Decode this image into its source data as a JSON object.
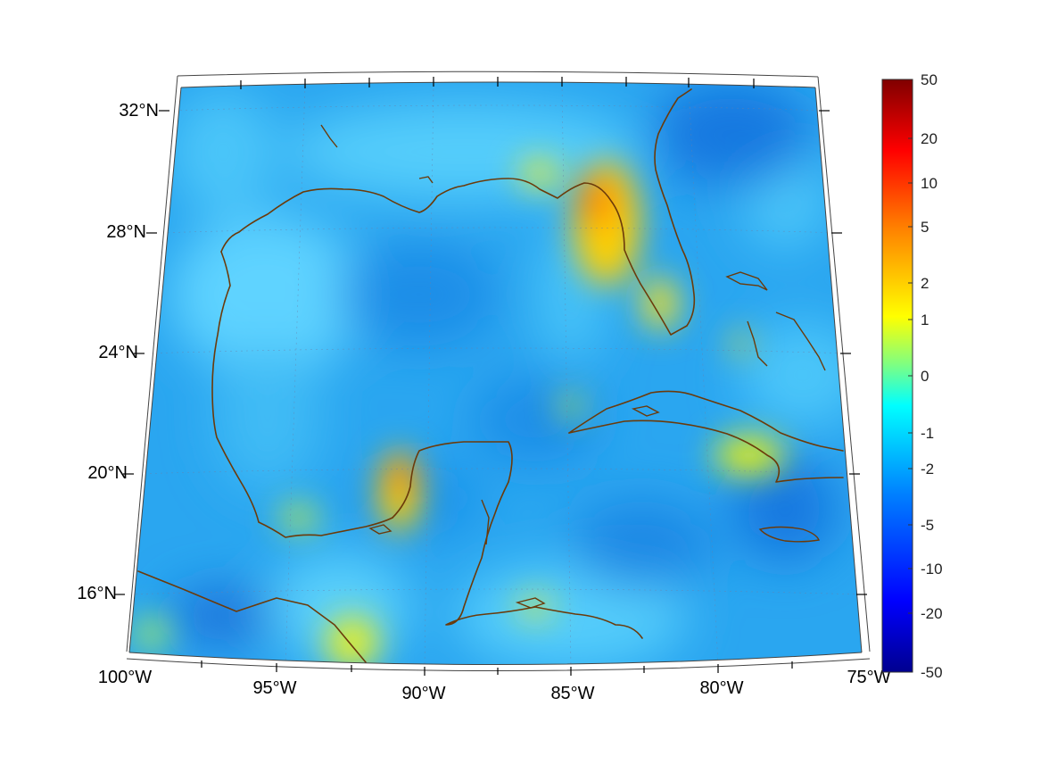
{
  "map": {
    "lat_labels": [
      "32°N",
      "28°N",
      "24°N",
      "20°N",
      "16°N"
    ],
    "lon_labels": [
      "100°W",
      "95°W",
      "90°W",
      "85°W",
      "80°W",
      "75°W"
    ],
    "lon_range": [
      -100,
      -75
    ],
    "lat_range": [
      14,
      33
    ]
  },
  "colorbar": {
    "tick_labels": [
      "50",
      "20",
      "10",
      "5",
      "2",
      "1",
      "0",
      "-1",
      "-2",
      "-5",
      "-10",
      "-20",
      "-50"
    ],
    "colormap": "jet",
    "colors": [
      "#00008f",
      "#0000ff",
      "#0080ff",
      "#00ffff",
      "#80ff80",
      "#ffff00",
      "#ff8000",
      "#ff0000",
      "#800000"
    ]
  },
  "colors": {
    "coastline": "#6b3a0a",
    "background_field": "#2aa6f0"
  }
}
